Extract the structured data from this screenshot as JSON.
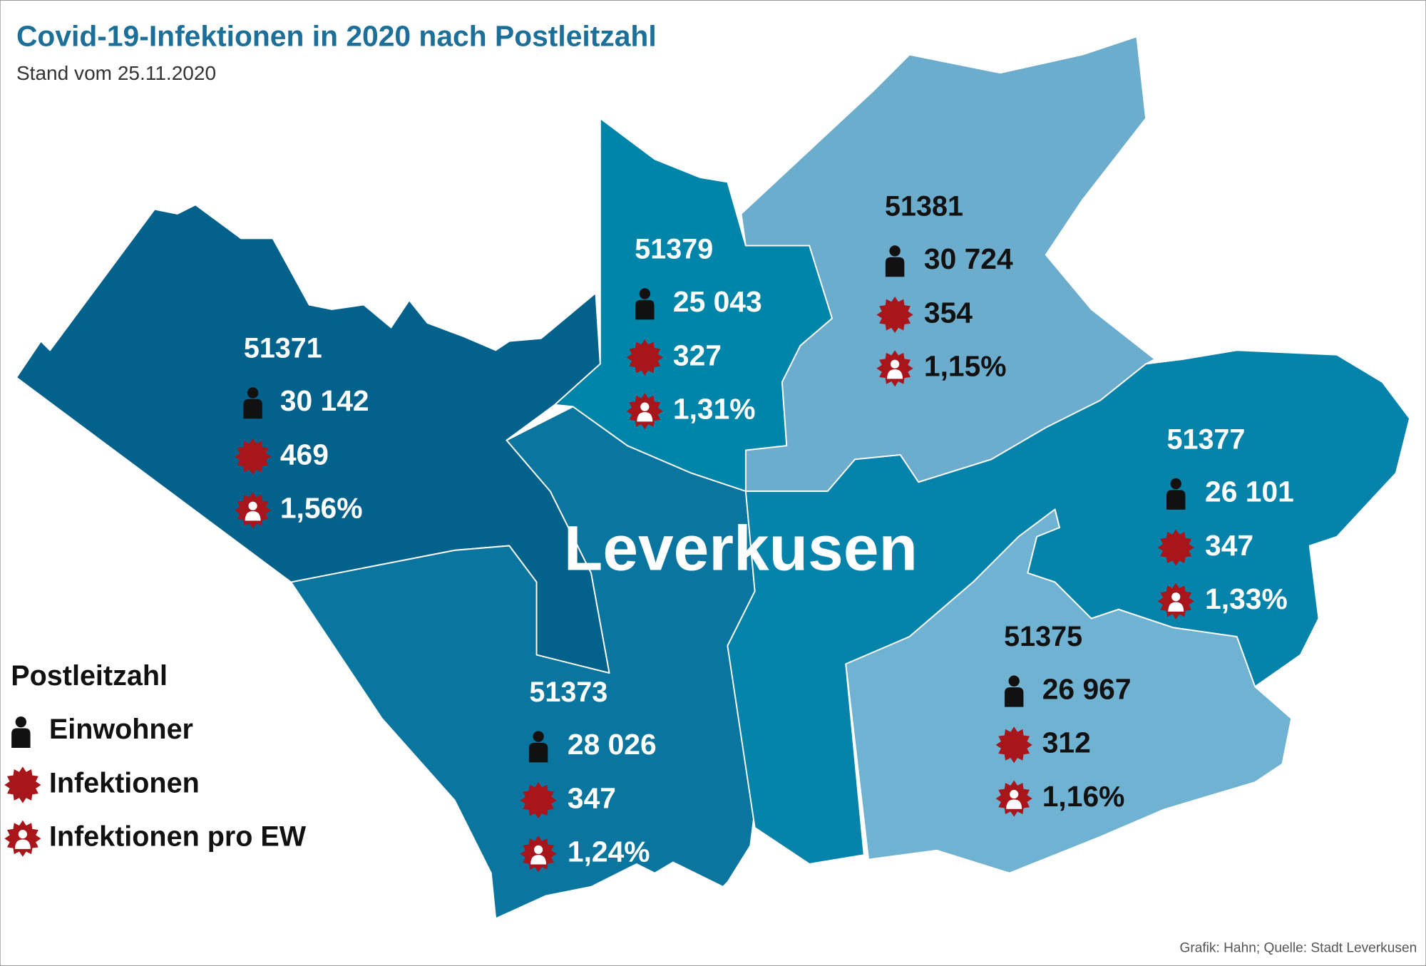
{
  "header": {
    "title": "Covid-19-Infektionen in 2020 nach Postleitzahl",
    "subtitle": "Stand vom 25.11.2020"
  },
  "map": {
    "city_label": "Leverkusen",
    "districts": [
      {
        "postcode": "51371",
        "einwohner": "30 142",
        "infektionen": "469",
        "pro_ew": "1,56%"
      },
      {
        "postcode": "51379",
        "einwohner": "25 043",
        "infektionen": "327",
        "pro_ew": "1,31%"
      },
      {
        "postcode": "51381",
        "einwohner": "30 724",
        "infektionen": "354",
        "pro_ew": "1,15%"
      },
      {
        "postcode": "51377",
        "einwohner": "26 101",
        "infektionen": "347",
        "pro_ew": "1,33%"
      },
      {
        "postcode": "51375",
        "einwohner": "26 967",
        "infektionen": "312",
        "pro_ew": "1,16%"
      },
      {
        "postcode": "51373",
        "einwohner": "28 026",
        "infektionen": "347",
        "pro_ew": "1,24%"
      }
    ]
  },
  "legend": {
    "title": "Postleitzahl",
    "items": [
      "Einwohner",
      "Infektionen",
      "Infektionen pro EW"
    ]
  },
  "footer": {
    "source": "Grafik: Hahn; Quelle: Stadt Leverkusen"
  }
}
